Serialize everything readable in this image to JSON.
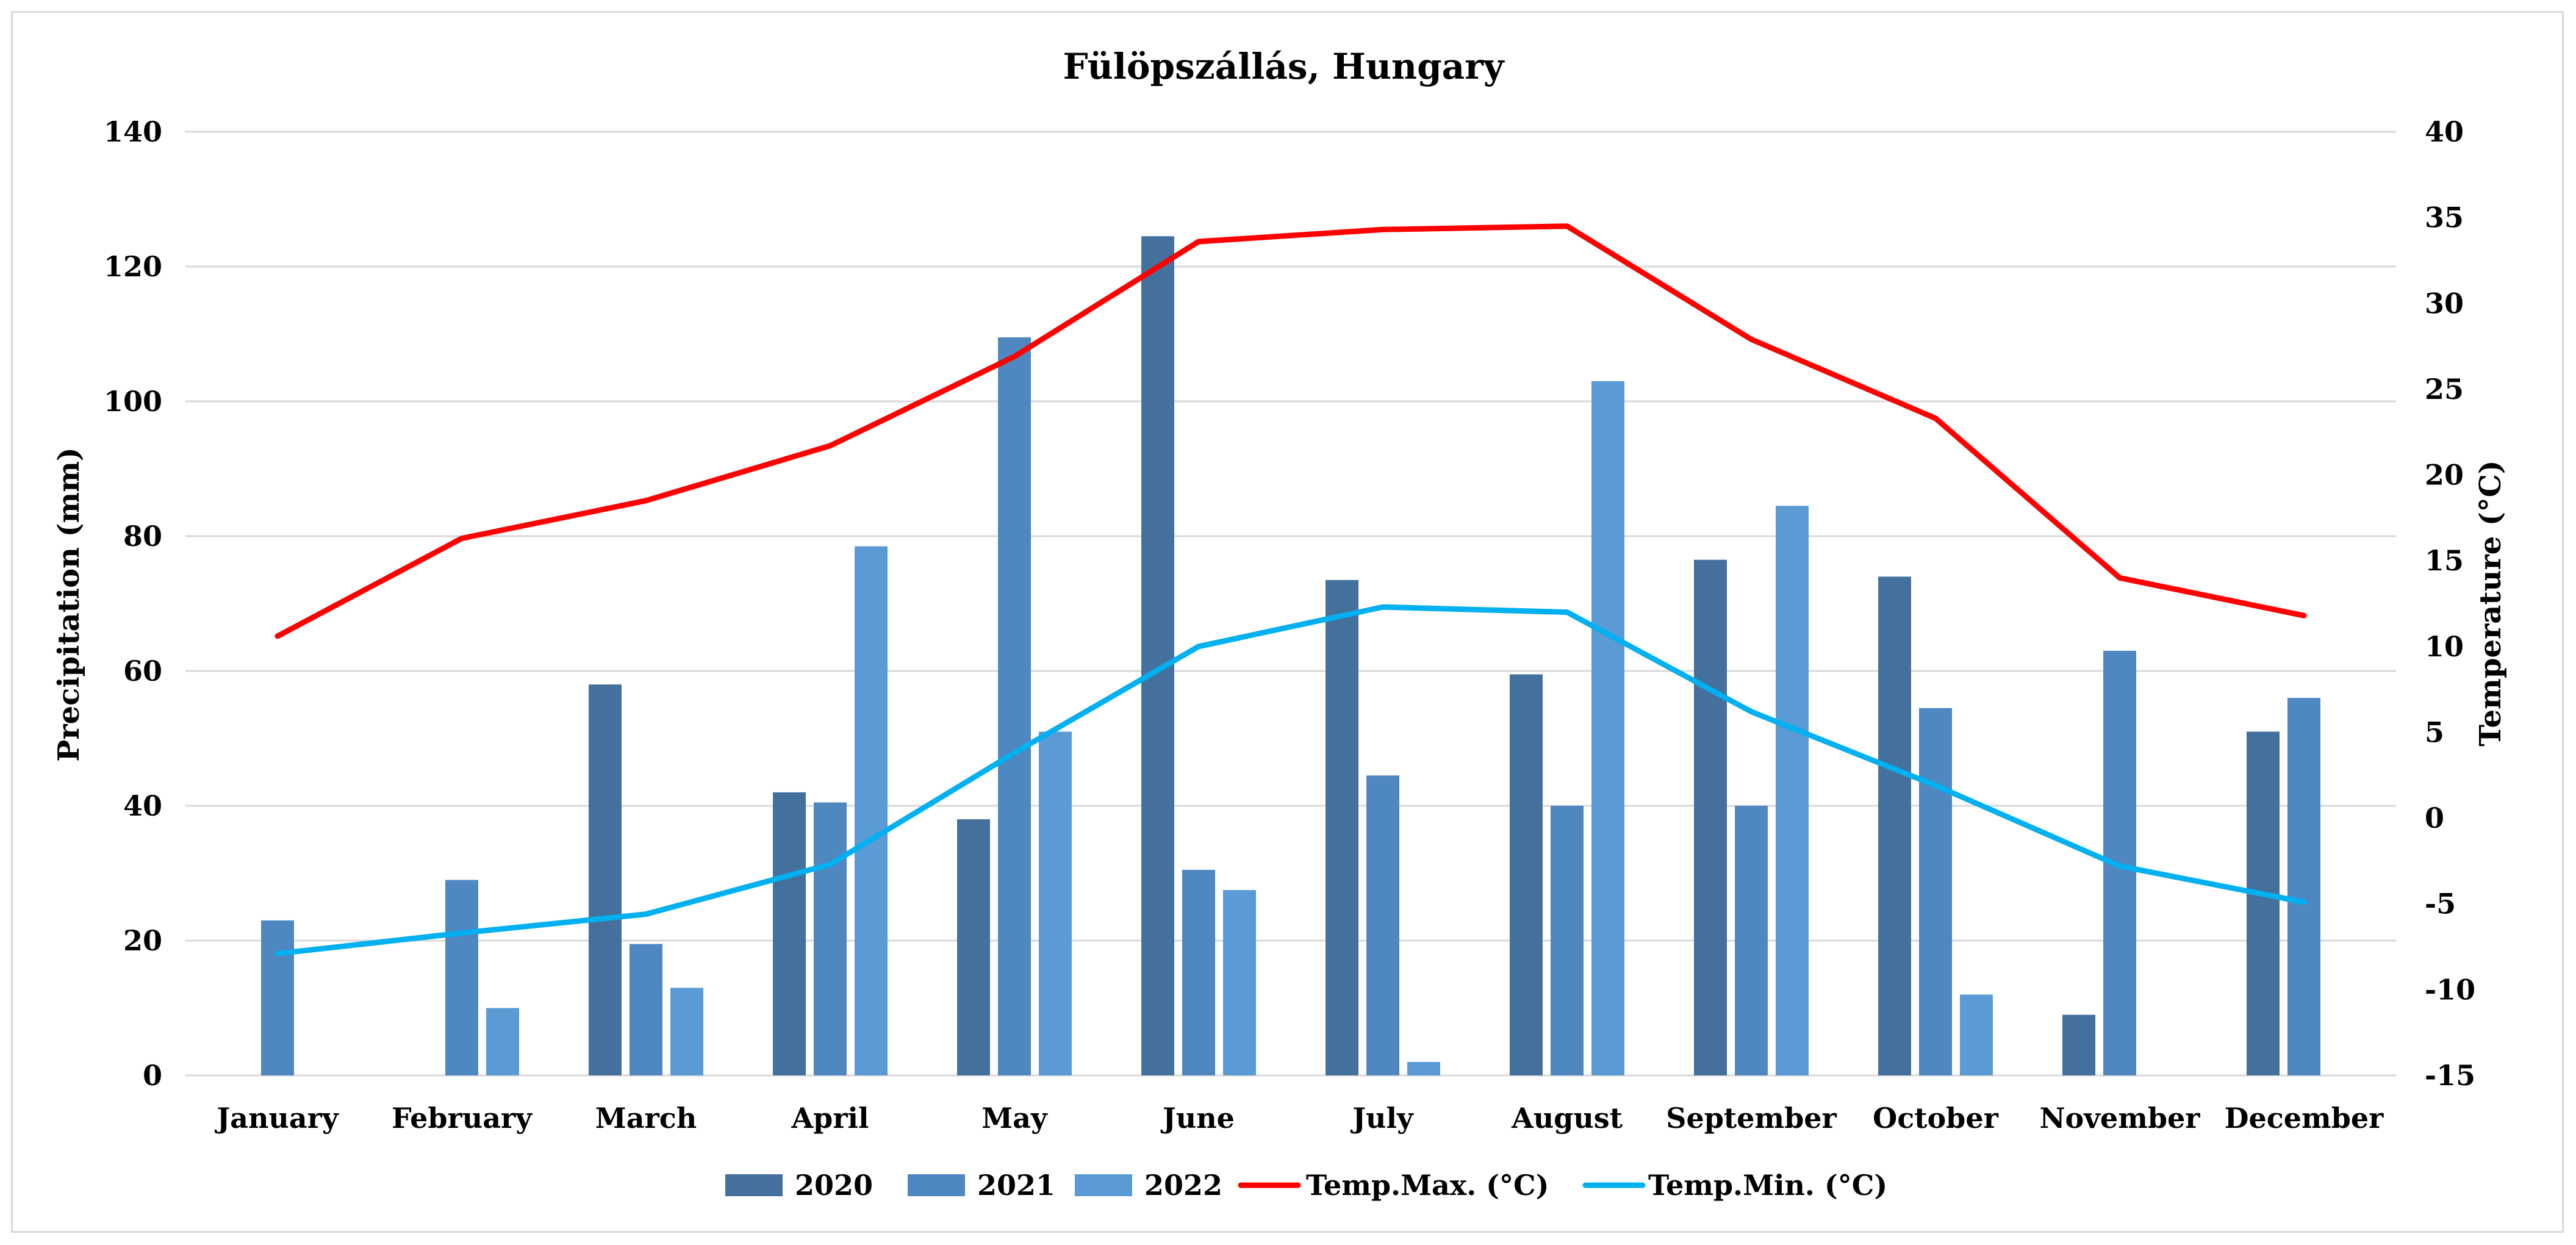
{
  "chart_data": {
    "type": "bar",
    "title": "Fülöpszállás, Hungary",
    "categories": [
      "January",
      "February",
      "March",
      "April",
      "May",
      "June",
      "July",
      "August",
      "September",
      "October",
      "November",
      "December"
    ],
    "ylabel": "Precipitation (mm)",
    "y2label": "Temperature (°C)",
    "ylim": [
      0,
      140
    ],
    "y2lim": [
      -15,
      40
    ],
    "yticks": [
      "0",
      "20",
      "40",
      "60",
      "80",
      "100",
      "120",
      "140"
    ],
    "y2ticks": [
      "-15",
      "-10",
      "-5",
      "0",
      "5",
      "10",
      "15",
      "20",
      "25",
      "30",
      "35",
      "40"
    ],
    "grid": true,
    "legend_position": "bottom",
    "series": [
      {
        "name": "2020",
        "kind": "bar",
        "color": "#44709e",
        "values": [
          0,
          0,
          58,
          42,
          38,
          124.5,
          73.5,
          59.5,
          76.5,
          74,
          9,
          51
        ]
      },
      {
        "name": "2021",
        "kind": "bar",
        "color": "#4f87c0",
        "values": [
          23,
          29,
          19.5,
          40.5,
          109.5,
          30.5,
          44.5,
          40,
          40,
          54.5,
          63,
          56
        ]
      },
      {
        "name": "2022",
        "kind": "bar",
        "color": "#5b9bd5",
        "values": [
          0,
          10,
          13,
          78.5,
          51,
          27.5,
          2,
          103,
          84.5,
          12,
          0,
          0
        ]
      },
      {
        "name": "Temp.Max. (°C)",
        "kind": "line",
        "axis": "y2",
        "color": "#ff0000",
        "values": [
          10.6,
          16.3,
          18.5,
          21.7,
          26.9,
          33.6,
          34.3,
          34.5,
          27.9,
          23.3,
          14.0,
          11.8
        ]
      },
      {
        "name": "Temp.Min. (°C)",
        "kind": "line",
        "axis": "y2",
        "color": "#00b0f0",
        "values": [
          -7.9,
          -6.7,
          -5.6,
          -2.7,
          3.8,
          10.0,
          12.3,
          12.0,
          6.2,
          1.9,
          -2.8,
          -4.9
        ]
      }
    ]
  }
}
